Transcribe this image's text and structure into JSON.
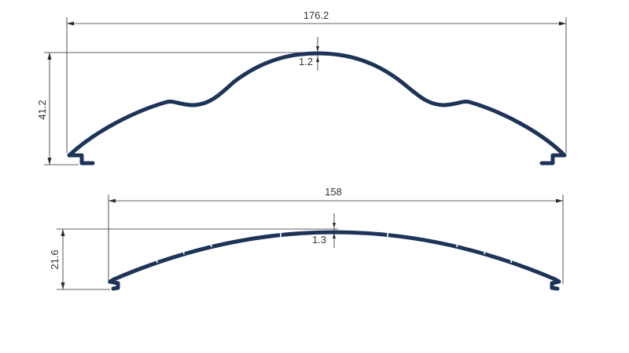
{
  "profile_color": "#1e3358",
  "profile_upper": {
    "width_dim": "176.2",
    "height_dim": "41.2",
    "thickness_dim": "1.2"
  },
  "profile_lower": {
    "width_dim": "158",
    "height_dim": "21.6",
    "thickness_dim": "1.3"
  }
}
